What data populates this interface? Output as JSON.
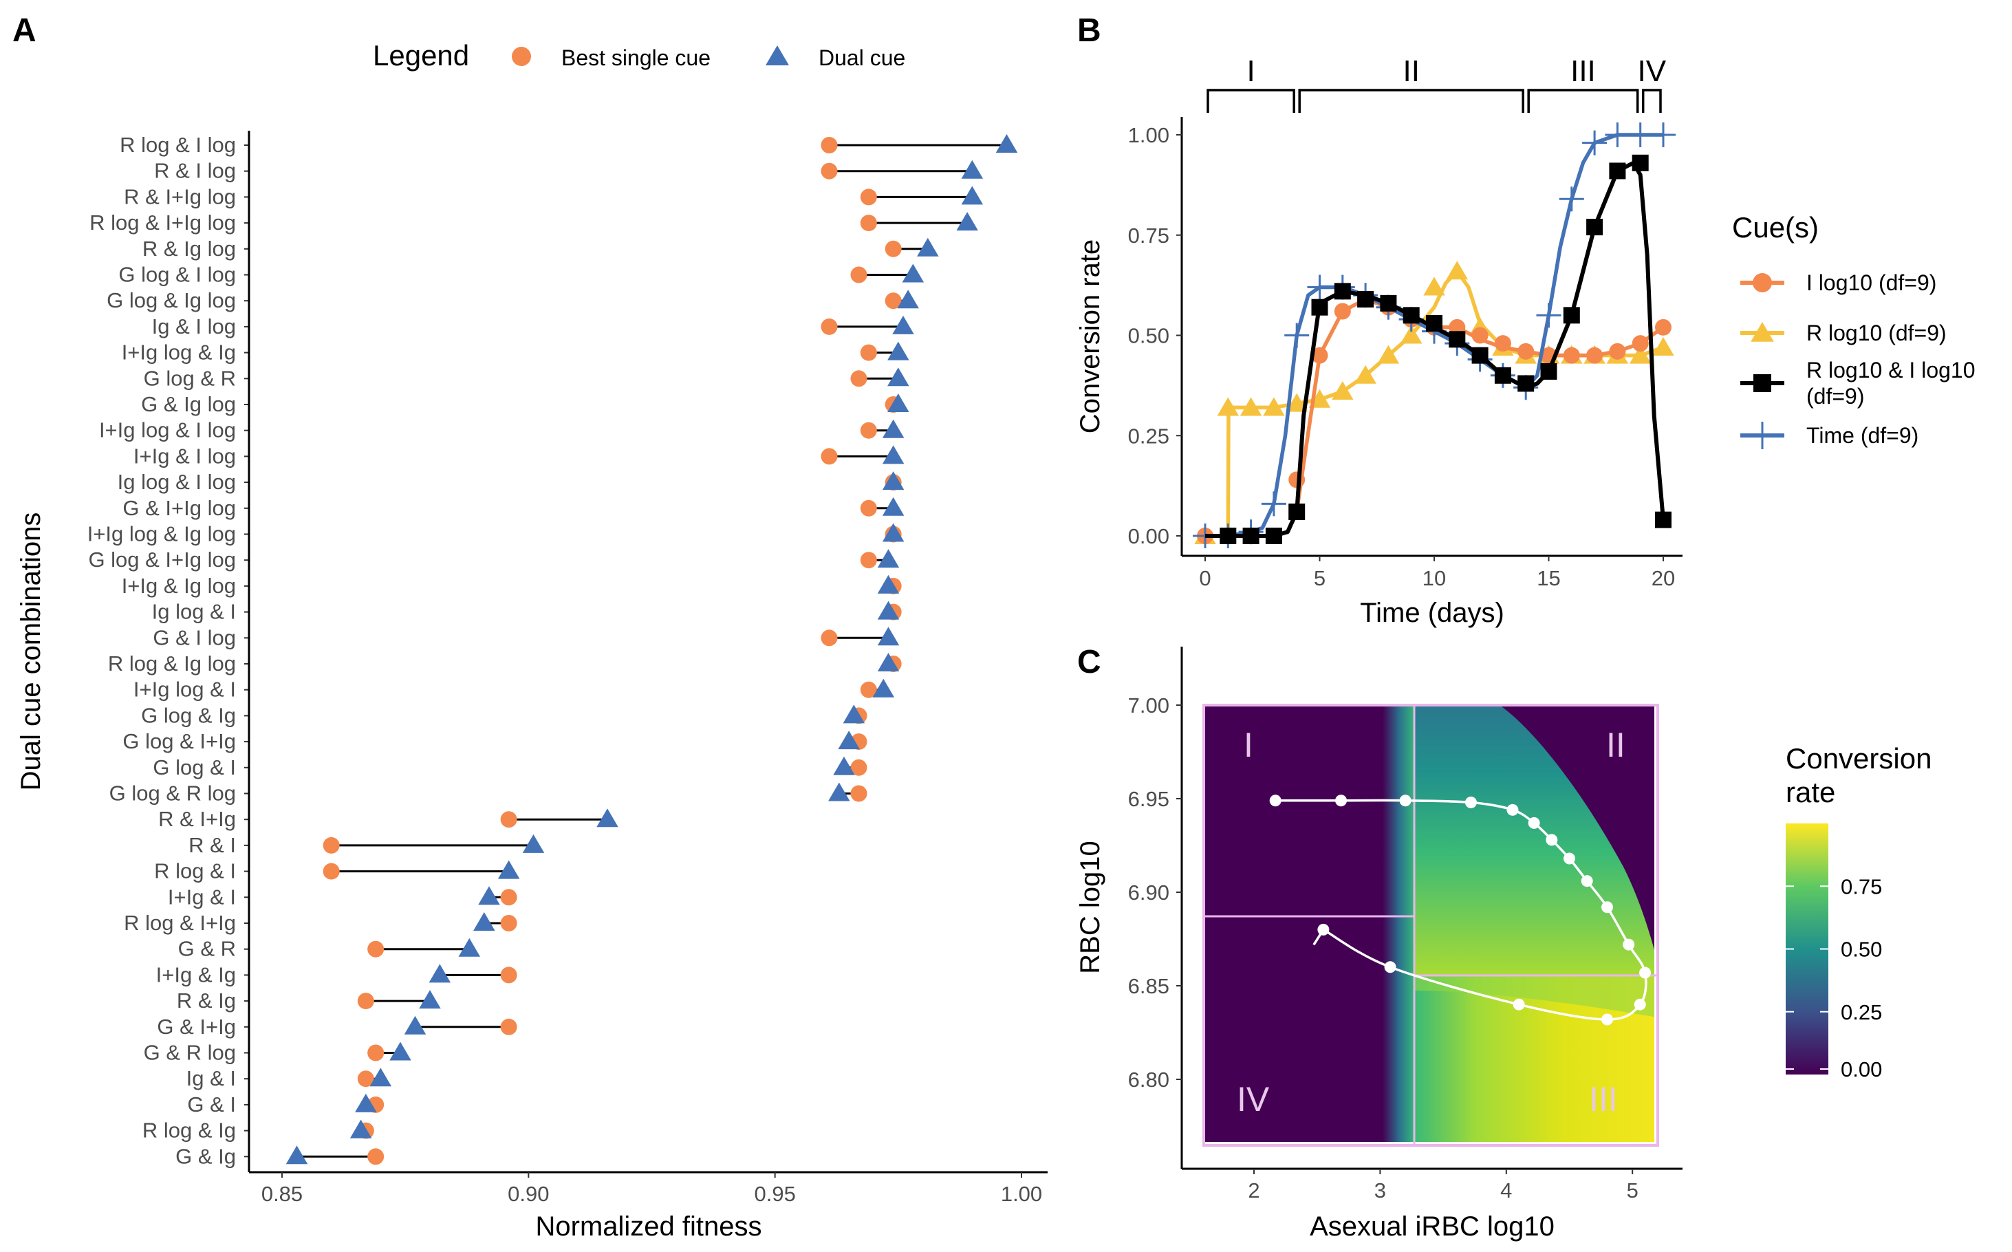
{
  "panels": {
    "A": "A",
    "B": "B",
    "C": "C"
  },
  "chart_data": [
    {
      "panel": "A",
      "type": "scatter",
      "xlabel": "Normalized fitness",
      "ylabel": "Dual cue combinations",
      "xlim": [
        0.85,
        1.0
      ],
      "xticks": [
        "0.85",
        "0.90",
        "0.95",
        "1.00"
      ],
      "legend": {
        "title": "Legend",
        "position": "top",
        "entries": [
          {
            "name": "Best single cue",
            "shape": "circle",
            "color": "#F4874B"
          },
          {
            "name": "Dual cue",
            "shape": "triangle",
            "color": "#4472B6"
          }
        ]
      },
      "categories": [
        "R log & I log",
        "R & I log",
        "R & I+Ig log",
        "R log & I+Ig log",
        "R & Ig log",
        "G log & I log",
        "G log & Ig log",
        "Ig & I log",
        "I+Ig log & Ig",
        "G log & R",
        "G & Ig log",
        "I+Ig log & I log",
        "I+Ig & I log",
        "Ig log & I log",
        "G & I+Ig log",
        "I+Ig log & Ig log",
        "G log & I+Ig log",
        "I+Ig & Ig log",
        "Ig log & I",
        "G & I log",
        "R log & Ig log",
        "I+Ig log & I",
        "G log & Ig",
        "G log & I+Ig",
        "G log & I",
        "G log & R log",
        "R & I+Ig",
        "R & I",
        "R log & I",
        "I+Ig & I",
        "R log & I+Ig",
        "G & R",
        "I+Ig & Ig",
        "R & Ig",
        "G & I+Ig",
        "G & R log",
        "Ig & I",
        "G & I",
        "R log & Ig",
        "G & Ig"
      ],
      "series": [
        {
          "name": "Best single cue",
          "values": [
            0.961,
            0.961,
            0.969,
            0.969,
            0.974,
            0.967,
            0.974,
            0.961,
            0.969,
            0.967,
            0.974,
            0.969,
            0.961,
            0.974,
            0.969,
            0.974,
            0.969,
            0.974,
            0.974,
            0.961,
            0.974,
            0.969,
            0.967,
            0.967,
            0.967,
            0.967,
            0.896,
            0.86,
            0.86,
            0.896,
            0.896,
            0.869,
            0.896,
            0.867,
            0.896,
            0.869,
            0.867,
            0.869,
            0.867,
            0.869
          ]
        },
        {
          "name": "Dual cue",
          "values": [
            0.997,
            0.99,
            0.99,
            0.989,
            0.981,
            0.978,
            0.977,
            0.976,
            0.975,
            0.975,
            0.975,
            0.974,
            0.974,
            0.974,
            0.974,
            0.974,
            0.973,
            0.973,
            0.973,
            0.973,
            0.973,
            0.972,
            0.966,
            0.965,
            0.964,
            0.963,
            0.916,
            0.901,
            0.896,
            0.892,
            0.891,
            0.888,
            0.882,
            0.88,
            0.877,
            0.874,
            0.87,
            0.867,
            0.866,
            0.853
          ]
        }
      ]
    },
    {
      "panel": "B",
      "type": "line",
      "xlabel": "Time (days)",
      "ylabel": "Conversion rate",
      "xlim": [
        -1,
        21
      ],
      "ylim": [
        -0.05,
        1.05
      ],
      "xticks": [
        "0",
        "5",
        "10",
        "15",
        "20"
      ],
      "yticks": [
        "0.00",
        "0.25",
        "0.50",
        "0.75",
        "1.00"
      ],
      "phases": [
        {
          "label": "I",
          "start": 0,
          "end": 4
        },
        {
          "label": "II",
          "start": 4,
          "end": 14
        },
        {
          "label": "III",
          "start": 14,
          "end": 19
        },
        {
          "label": "IV",
          "start": 19,
          "end": 20
        }
      ],
      "legend": {
        "title": "Cue(s)",
        "position": "right"
      },
      "x": [
        0,
        1,
        2,
        3,
        4,
        5,
        6,
        7,
        8,
        9,
        10,
        11,
        12,
        13,
        14,
        15,
        16,
        17,
        18,
        19,
        20
      ],
      "series": [
        {
          "name": "I log10 (df=9)",
          "color": "#F4874B",
          "marker": "circle",
          "line_x": [
            0,
            1,
            2,
            3,
            3.6,
            4,
            4.3,
            5,
            6,
            7,
            8,
            9,
            10,
            11,
            12,
            13,
            14,
            15,
            16,
            17,
            18,
            19,
            20
          ],
          "line_y": [
            0,
            0,
            0,
            0,
            0.01,
            0.06,
            0.18,
            0.45,
            0.56,
            0.59,
            0.57,
            0.54,
            0.52,
            0.52,
            0.49,
            0.47,
            0.46,
            0.45,
            0.45,
            0.45,
            0.46,
            0.48,
            0.52
          ],
          "values": [
            0,
            0,
            0,
            0,
            0.14,
            0.45,
            0.56,
            0.59,
            0.57,
            0.54,
            0.52,
            0.52,
            0.5,
            0.48,
            0.46,
            0.45,
            0.45,
            0.45,
            0.46,
            0.48,
            0.52
          ]
        },
        {
          "name": "R log10 (df=9)",
          "color": "#F6C23E",
          "marker": "triangle",
          "line_x": [
            1,
            1.02,
            2,
            3,
            4,
            5,
            6,
            7,
            8,
            9,
            10,
            10.5,
            11,
            11.5,
            12,
            13,
            14,
            15,
            16,
            17,
            18,
            19,
            20
          ],
          "line_y": [
            0,
            0.32,
            0.32,
            0.32,
            0.33,
            0.34,
            0.36,
            0.4,
            0.45,
            0.5,
            0.57,
            0.63,
            0.66,
            0.62,
            0.53,
            0.47,
            0.45,
            0.45,
            0.45,
            0.45,
            0.45,
            0.45,
            0.47
          ],
          "values": [
            0,
            0.32,
            0.32,
            0.32,
            0.33,
            0.34,
            0.36,
            0.4,
            0.45,
            0.5,
            0.62,
            0.66,
            0.52,
            0.47,
            0.45,
            0.45,
            0.45,
            0.45,
            0.45,
            0.45,
            0.47
          ]
        },
        {
          "name": "R log10 & I log10 (df=9)",
          "color": "#000000",
          "marker": "square",
          "line_x": [
            0,
            1,
            2,
            3,
            3.6,
            4,
            4.3,
            5,
            6,
            7,
            8,
            9,
            10,
            11,
            12,
            13,
            14,
            14.5,
            15,
            16,
            17,
            18,
            18.7,
            19,
            19.3,
            19.6,
            20
          ],
          "line_y": [
            0,
            0,
            0,
            0,
            0.01,
            0.06,
            0.3,
            0.58,
            0.61,
            0.6,
            0.58,
            0.55,
            0.52,
            0.49,
            0.45,
            0.4,
            0.37,
            0.38,
            0.41,
            0.55,
            0.77,
            0.91,
            0.93,
            0.9,
            0.7,
            0.3,
            0.04
          ],
          "values": [
            null,
            0,
            0,
            0,
            0.06,
            0.57,
            0.61,
            0.59,
            0.58,
            0.55,
            0.53,
            0.49,
            0.45,
            0.4,
            0.38,
            0.41,
            0.55,
            0.77,
            0.91,
            0.93,
            0.04
          ]
        },
        {
          "name": "Time (df=9)",
          "color": "#4472B6",
          "marker": "plus",
          "line_x": [
            0,
            1,
            2,
            2.5,
            3,
            3.5,
            4,
            4.5,
            5,
            6,
            7,
            8,
            9,
            10,
            11,
            12,
            13,
            14,
            14.5,
            15,
            15.5,
            16,
            16.5,
            17,
            18,
            19,
            20
          ],
          "line_y": [
            0,
            0,
            0.01,
            0.02,
            0.08,
            0.25,
            0.5,
            0.6,
            0.62,
            0.62,
            0.6,
            0.57,
            0.54,
            0.51,
            0.48,
            0.44,
            0.4,
            0.37,
            0.4,
            0.55,
            0.72,
            0.84,
            0.93,
            0.98,
            1.0,
            1.0,
            1.0
          ],
          "values": [
            0,
            0,
            0.01,
            0.08,
            0.5,
            0.62,
            0.62,
            0.6,
            0.57,
            0.54,
            0.51,
            0.48,
            0.44,
            0.4,
            0.37,
            0.55,
            0.84,
            0.98,
            1.0,
            1.0,
            1.0
          ]
        }
      ]
    },
    {
      "panel": "C",
      "type": "heatmap",
      "xlabel": "Asexual iRBC log10",
      "ylabel": "RBC log10",
      "xlim": [
        1.5,
        5.35
      ],
      "ylim": [
        6.765,
        7.03
      ],
      "xticks": [
        "2",
        "3",
        "4",
        "5"
      ],
      "yticks": [
        "6.80",
        "6.85",
        "6.90",
        "6.95",
        "7.00"
      ],
      "colorbar": {
        "title_line1": "Conversion",
        "title_line2": "rate",
        "ticks": [
          "0.00",
          "0.25",
          "0.50",
          "0.75"
        ],
        "range": [
          0,
          1
        ],
        "colors": [
          "#440154",
          "#3b528b",
          "#21918c",
          "#5ec962",
          "#fde725"
        ]
      },
      "region_labels": [
        "I",
        "II",
        "III",
        "IV"
      ],
      "trajectory": [
        {
          "x": 2.17,
          "y": 6.949
        },
        {
          "x": 2.69,
          "y": 6.949
        },
        {
          "x": 3.2,
          "y": 6.949
        },
        {
          "x": 3.72,
          "y": 6.948
        },
        {
          "x": 4.05,
          "y": 6.944
        },
        {
          "x": 4.22,
          "y": 6.937
        },
        {
          "x": 4.36,
          "y": 6.928
        },
        {
          "x": 4.5,
          "y": 6.918
        },
        {
          "x": 4.64,
          "y": 6.906
        },
        {
          "x": 4.8,
          "y": 6.892
        },
        {
          "x": 4.97,
          "y": 6.872
        },
        {
          "x": 5.1,
          "y": 6.857
        },
        {
          "x": 5.06,
          "y": 6.84
        },
        {
          "x": 4.8,
          "y": 6.832
        },
        {
          "x": 4.1,
          "y": 6.84
        },
        {
          "x": 3.08,
          "y": 6.86
        },
        {
          "x": 2.55,
          "y": 6.88
        }
      ]
    }
  ]
}
